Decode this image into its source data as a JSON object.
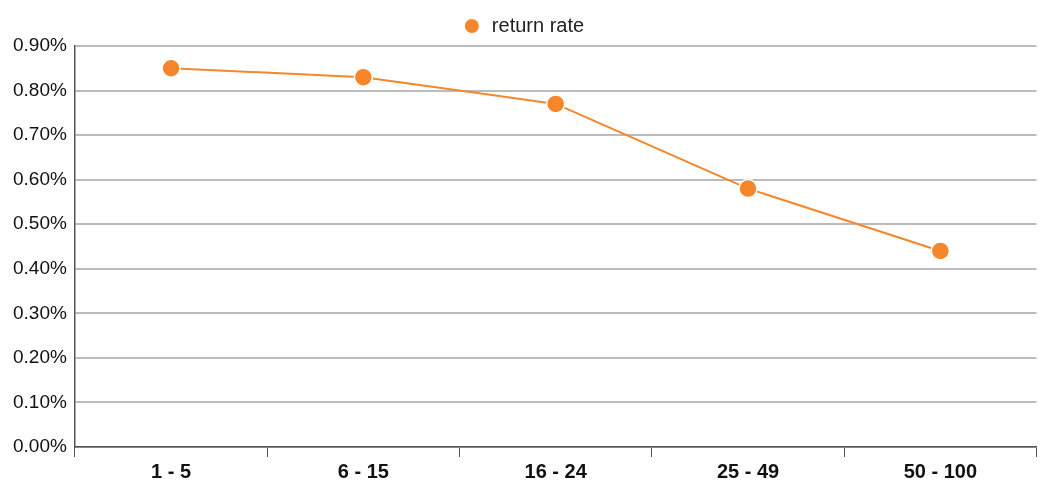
{
  "chart_data": {
    "type": "line",
    "categories": [
      "1 - 5",
      "6 - 15",
      "16 - 24",
      "25 - 49",
      "50 - 100"
    ],
    "series": [
      {
        "name": "return rate",
        "color": "#f5862a",
        "values": [
          0.85,
          0.83,
          0.77,
          0.58,
          0.44
        ]
      }
    ],
    "ylim": [
      0,
      0.9
    ],
    "yticks": [
      {
        "value": 0,
        "label": "0.00%"
      },
      {
        "value": 0.1,
        "label": "0.10%"
      },
      {
        "value": 0.2,
        "label": "0.20%"
      },
      {
        "value": 0.3,
        "label": "0.30%"
      },
      {
        "value": 0.4,
        "label": "0.40%"
      },
      {
        "value": 0.5,
        "label": "0.50%"
      },
      {
        "value": 0.6,
        "label": "0.60%"
      },
      {
        "value": 0.7,
        "label": "0.70%"
      },
      {
        "value": 0.8,
        "label": "0.80%"
      },
      {
        "value": 0.9,
        "label": "0.90%"
      }
    ],
    "grid": "y",
    "legend": "top",
    "marker": "circle",
    "line_style": "solid"
  }
}
